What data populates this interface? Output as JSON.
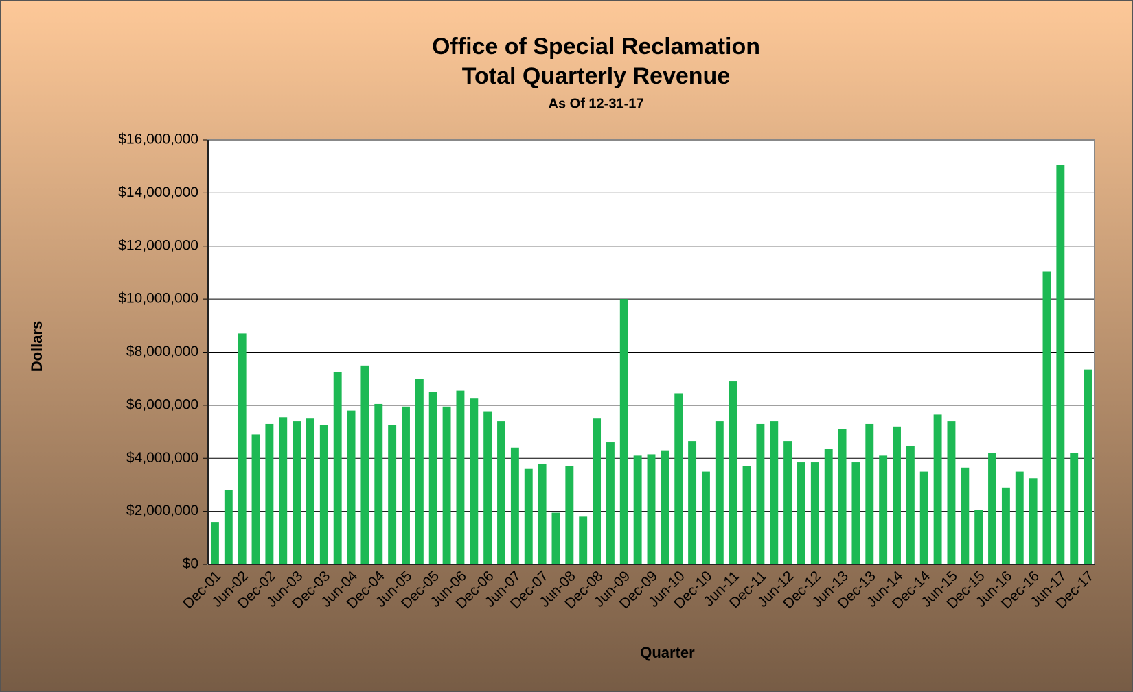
{
  "chart_data": {
    "type": "bar",
    "title": "Office of Special Reclamation",
    "subtitle": "Total Quarterly Revenue",
    "note": "As Of 12-31-17",
    "x_label": "Quarter",
    "y_label": "Dollars",
    "color": "#1db954",
    "grid": true,
    "categories": [
      "Dec-01",
      null,
      "Jun-02",
      null,
      "Dec-02",
      null,
      "Jun-03",
      null,
      "Dec-03",
      null,
      "Jun-04",
      null,
      "Dec-04",
      null,
      "Jun-05",
      null,
      "Dec-05",
      null,
      "Jun-06",
      null,
      "Dec-06",
      null,
      "Jun-07",
      null,
      "Dec-07",
      null,
      "Jun-08",
      null,
      "Dec-08",
      null,
      "Jun-09",
      null,
      "Dec-09",
      null,
      "Jun-10",
      null,
      "Dec-10",
      null,
      "Jun-11",
      null,
      "Dec-11",
      null,
      "Jun-12",
      null,
      "Dec-12",
      null,
      "Jun-13",
      null,
      "Dec-13",
      null,
      "Jun-14",
      null,
      "Dec-14",
      null,
      "Jun-15",
      null,
      "Dec-15",
      null,
      "Jun-16",
      null,
      "Dec-16",
      null,
      "Jun-17",
      null,
      "Dec-17"
    ],
    "values": [
      1600000,
      2800000,
      8700000,
      4900000,
      5300000,
      5550000,
      5400000,
      5500000,
      5250000,
      7250000,
      5800000,
      7500000,
      6050000,
      5250000,
      5950000,
      7000000,
      6500000,
      5950000,
      6550000,
      6250000,
      5750000,
      5400000,
      4400000,
      3600000,
      3800000,
      1950000,
      3700000,
      1800000,
      5500000,
      4600000,
      10000000,
      4100000,
      4150000,
      4300000,
      6450000,
      4650000,
      3500000,
      5400000,
      6900000,
      3700000,
      5300000,
      5400000,
      4650000,
      3850000,
      3850000,
      4350000,
      5100000,
      3850000,
      5300000,
      4100000,
      5200000,
      4450000,
      3500000,
      5650000,
      5400000,
      3650000,
      2050000,
      4200000,
      2900000,
      3500000,
      3250000,
      11050000,
      15050000,
      4200000,
      7350000
    ],
    "ylim": [
      0,
      16000000
    ],
    "yticks": [
      {
        "value": 0,
        "label": "$0"
      },
      {
        "value": 2000000,
        "label": "$2,000,000"
      },
      {
        "value": 4000000,
        "label": "$4,000,000"
      },
      {
        "value": 6000000,
        "label": "$6,000,000"
      },
      {
        "value": 8000000,
        "label": "$8,000,000"
      },
      {
        "value": 10000000,
        "label": "$10,000,000"
      },
      {
        "value": 12000000,
        "label": "$12,000,000"
      },
      {
        "value": 14000000,
        "label": "$14,000,000"
      },
      {
        "value": 16000000,
        "label": "$16,000,000"
      }
    ]
  }
}
